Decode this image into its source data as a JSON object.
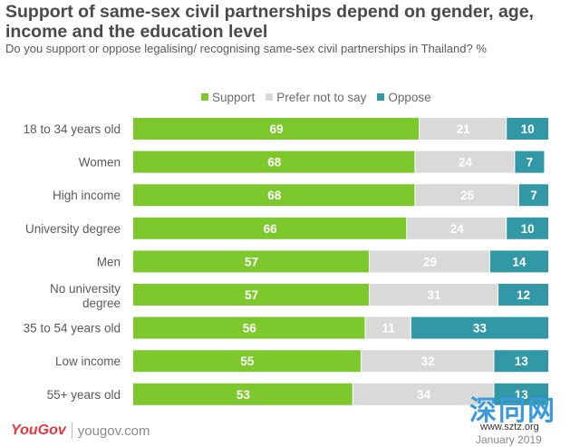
{
  "title": "Support of same-sex civil partnerships depend on gender, age, income and the education level",
  "subtitle": "Do you support or oppose legalising/ recognising same-sex civil partnerships in Thailand? %",
  "colors": {
    "support": "#7dc82c",
    "prefer": "#d9d9d9",
    "oppose": "#3398a6"
  },
  "chart_data": {
    "type": "bar",
    "orientation": "horizontal",
    "stacked": true,
    "categories": [
      "18 to 34 years old",
      "Women",
      "High income",
      "University degree",
      "Men",
      "No university degree",
      "35 to 54 years old",
      "Low income",
      "55+ years old"
    ],
    "series": [
      {
        "name": "Support",
        "values": [
          69,
          68,
          68,
          66,
          57,
          57,
          56,
          55,
          53
        ]
      },
      {
        "name": "Prefer not to say",
        "values": [
          21,
          24,
          25,
          24,
          29,
          31,
          11,
          32,
          34
        ]
      },
      {
        "name": "Oppose",
        "values": [
          10,
          7,
          7,
          10,
          14,
          12,
          33,
          13,
          13
        ]
      }
    ],
    "xlim": [
      0,
      100
    ],
    "unit": "%"
  },
  "footer": {
    "logo": "YouGov",
    "url": "yougov.com",
    "date": "January 2019"
  },
  "watermark": {
    "cn": "深同网",
    "url": "www.sztz.org"
  }
}
